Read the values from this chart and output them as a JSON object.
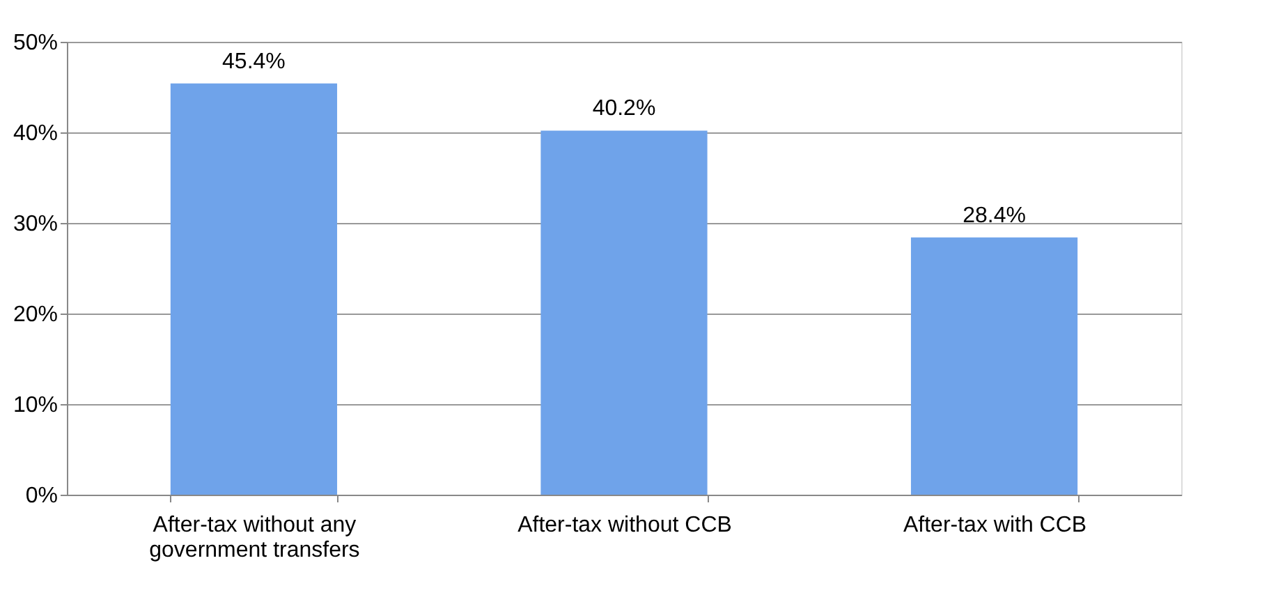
{
  "chart_data": {
    "type": "bar",
    "categories": [
      "After-tax without any government transfers",
      "After-tax without CCB",
      "After-tax with CCB"
    ],
    "values": [
      45.4,
      40.2,
      28.4
    ],
    "color": "#6fa3ea",
    "value_labels": [
      "45.4%",
      "40.2%",
      "28.4%"
    ],
    "ylim": [
      0,
      50
    ],
    "yticks": [
      {
        "value": 0,
        "label": "0%"
      },
      {
        "value": 10,
        "label": "10%"
      },
      {
        "value": 20,
        "label": "20%"
      },
      {
        "value": 30,
        "label": "30%"
      },
      {
        "value": 40,
        "label": "40%"
      },
      {
        "value": 50,
        "label": "50%"
      }
    ],
    "grid": "y"
  }
}
